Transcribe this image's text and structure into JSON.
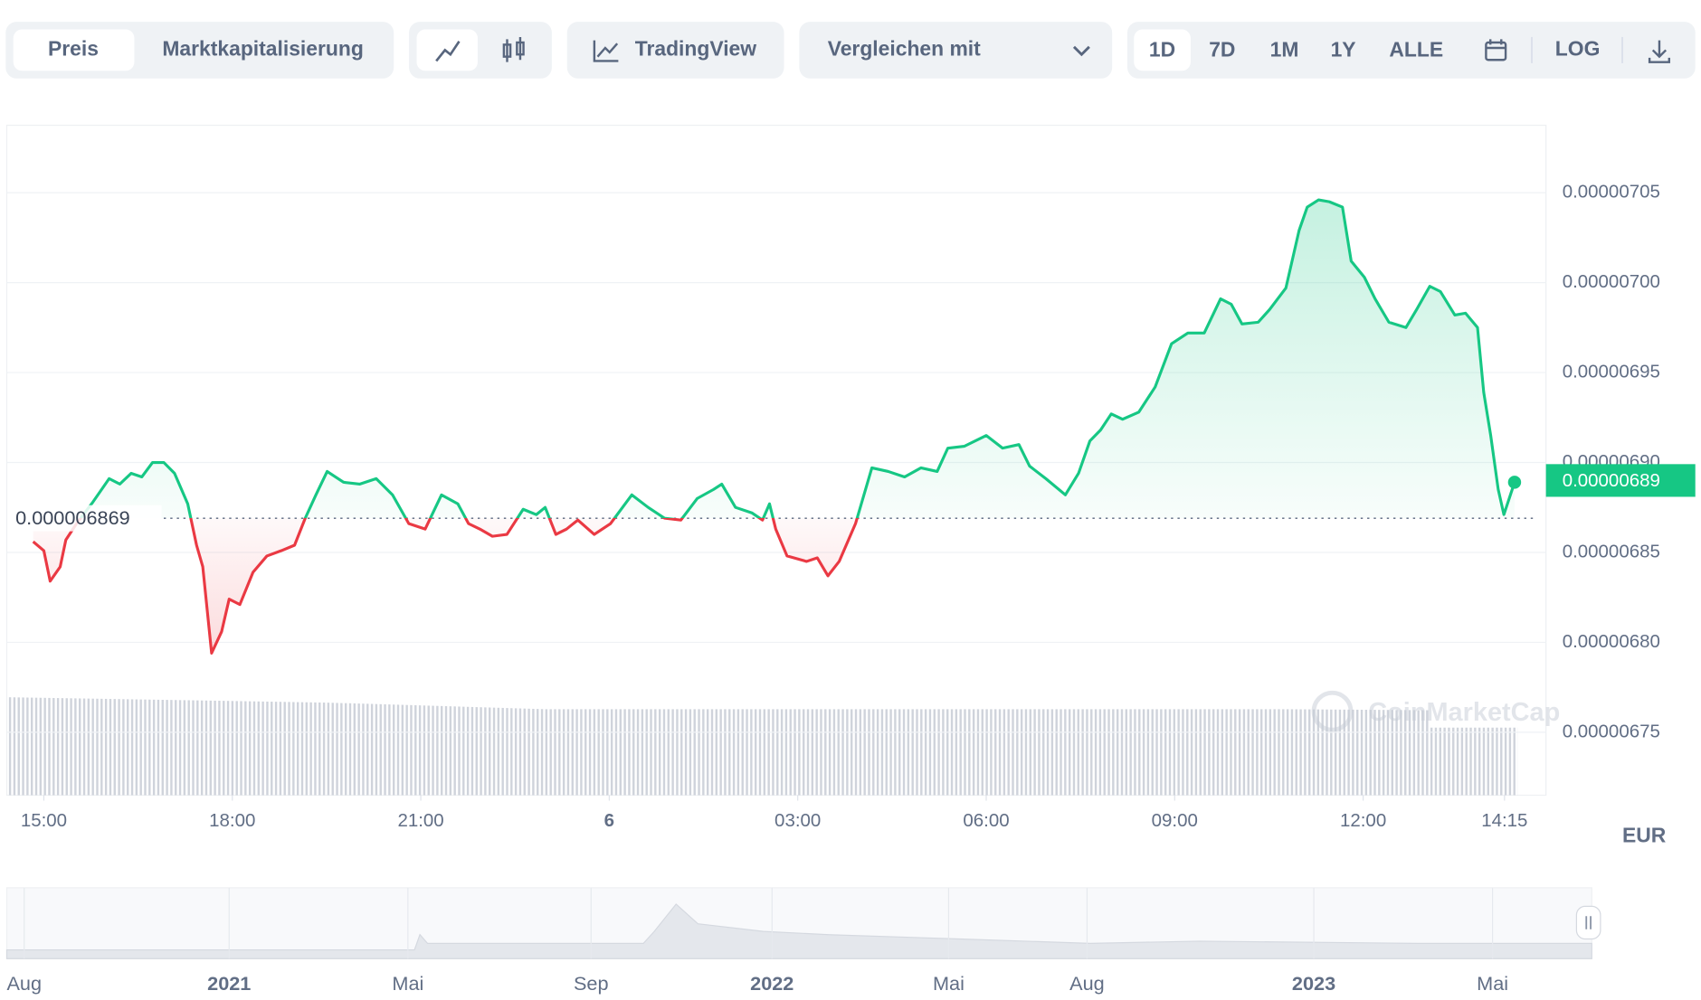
{
  "toolbar": {
    "chart_kinds": [
      "Preis",
      "Marktkapitalisierung"
    ],
    "tradingview": "TradingView",
    "compare": "Vergleichen mit",
    "ranges": [
      "1D",
      "7D",
      "1M",
      "1Y",
      "ALLE"
    ],
    "log": "LOG"
  },
  "chart_data": {
    "type": "line",
    "currency": "EUR",
    "watermark": "CoinMarketCap",
    "x": [
      14.83,
      15.0,
      15.1,
      15.26,
      15.35,
      15.52,
      15.78,
      16.04,
      16.21,
      16.39,
      16.56,
      16.73,
      16.91,
      17.08,
      17.29,
      17.43,
      17.53,
      17.67,
      17.83,
      17.95,
      18.12,
      18.33,
      18.55,
      18.78,
      18.99,
      19.16,
      19.33,
      19.51,
      19.77,
      20.03,
      20.29,
      20.55,
      20.81,
      21.07,
      21.33,
      21.59,
      21.76,
      21.94,
      22.14,
      22.37,
      22.63,
      22.84,
      22.98,
      23.15,
      23.32,
      23.5,
      23.76,
      24.02,
      24.36,
      24.62,
      24.88,
      25.14,
      25.4,
      25.66,
      25.79,
      26.01,
      26.27,
      26.44,
      26.55,
      26.65,
      26.83,
      27.14,
      27.31,
      27.48,
      27.66,
      27.92,
      28.18,
      28.44,
      28.7,
      28.96,
      29.22,
      29.39,
      29.65,
      30.0,
      30.26,
      30.52,
      30.69,
      30.95,
      31.26,
      31.47,
      31.65,
      31.82,
      31.99,
      32.17,
      32.43,
      32.69,
      32.95,
      33.21,
      33.47,
      33.73,
      33.9,
      34.07,
      34.33,
      34.51,
      34.77,
      34.98,
      35.11,
      35.29,
      35.46,
      35.67,
      35.81,
      36.02,
      36.19,
      36.41,
      36.68,
      36.85,
      37.06,
      37.23,
      37.46,
      37.63,
      37.82,
      37.92,
      38.03,
      38.15,
      38.24,
      38.41
    ],
    "values": [
      6.856e-06,
      6.851e-06,
      6.834e-06,
      6.842e-06,
      6.857e-06,
      6.866e-06,
      6.878e-06,
      6.891e-06,
      6.888e-06,
      6.894e-06,
      6.892e-06,
      6.9e-06,
      6.9e-06,
      6.894e-06,
      6.877e-06,
      6.854e-06,
      6.842e-06,
      6.794e-06,
      6.806e-06,
      6.824e-06,
      6.821e-06,
      6.839e-06,
      6.848e-06,
      6.851e-06,
      6.854e-06,
      6.869e-06,
      6.882e-06,
      6.895e-06,
      6.889e-06,
      6.888e-06,
      6.891e-06,
      6.882e-06,
      6.866e-06,
      6.863e-06,
      6.882e-06,
      6.877e-06,
      6.866e-06,
      6.863e-06,
      6.859e-06,
      6.86e-06,
      6.874e-06,
      6.871e-06,
      6.875e-06,
      6.86e-06,
      6.863e-06,
      6.868e-06,
      6.86e-06,
      6.866e-06,
      6.882e-06,
      6.875e-06,
      6.869e-06,
      6.868e-06,
      6.88e-06,
      6.885e-06,
      6.888e-06,
      6.875e-06,
      6.872e-06,
      6.868e-06,
      6.877e-06,
      6.863e-06,
      6.848e-06,
      6.845e-06,
      6.847e-06,
      6.837e-06,
      6.845e-06,
      6.866e-06,
      6.897e-06,
      6.895e-06,
      6.892e-06,
      6.897e-06,
      6.895e-06,
      6.908e-06,
      6.909e-06,
      6.915e-06,
      6.908e-06,
      6.91e-06,
      6.898e-06,
      6.891e-06,
      6.882e-06,
      6.894e-06,
      6.912e-06,
      6.918e-06,
      6.927e-06,
      6.924e-06,
      6.928e-06,
      6.942e-06,
      6.966e-06,
      6.972e-06,
      6.972e-06,
      6.991e-06,
      6.988e-06,
      6.977e-06,
      6.978e-06,
      6.985e-06,
      6.997e-06,
      7.029e-06,
      7.042e-06,
      7.046e-06,
      7.045e-06,
      7.042e-06,
      7.012e-06,
      7.003e-06,
      6.991e-06,
      6.978e-06,
      6.975e-06,
      6.985e-06,
      6.998e-06,
      6.995e-06,
      6.982e-06,
      6.983e-06,
      6.975e-06,
      6.939e-06,
      6.915e-06,
      6.885e-06,
      6.871e-06,
      6.889e-06
    ],
    "up_color": "#16c784",
    "down_color": "#ea3943",
    "baseline": 6.869e-06,
    "last_value": 6.89e-06,
    "xlim": [
      14.41,
      38.91
    ],
    "xticks": [
      {
        "value": 15,
        "label": "15:00"
      },
      {
        "value": 18,
        "label": "18:00"
      },
      {
        "value": 21,
        "label": "21:00"
      },
      {
        "value": 24,
        "label": "6"
      },
      {
        "value": 27,
        "label": "03:00"
      },
      {
        "value": 30,
        "label": "06:00"
      },
      {
        "value": 33,
        "label": "09:00"
      },
      {
        "value": 36,
        "label": "12:00"
      },
      {
        "value": 38.25,
        "label": "14:15"
      }
    ],
    "ylim": [
      6.715e-06,
      7.0875e-06
    ],
    "yticks": [
      6.75e-06,
      {
        "value": 6.8e-06,
        "label": "0.00000680"
      },
      6.85e-06,
      {
        "value": 6.9e-06,
        "label": "0.00000690"
      },
      6.95e-06,
      {
        "value": 7e-06,
        "label": "0.00000700"
      },
      7.05e-06
    ],
    "grid": true,
    "navigator_labels": [
      "Aug",
      "2021",
      "Mai",
      "Sep",
      "2022",
      "Mai",
      "Aug",
      "2023",
      "Mai"
    ]
  }
}
